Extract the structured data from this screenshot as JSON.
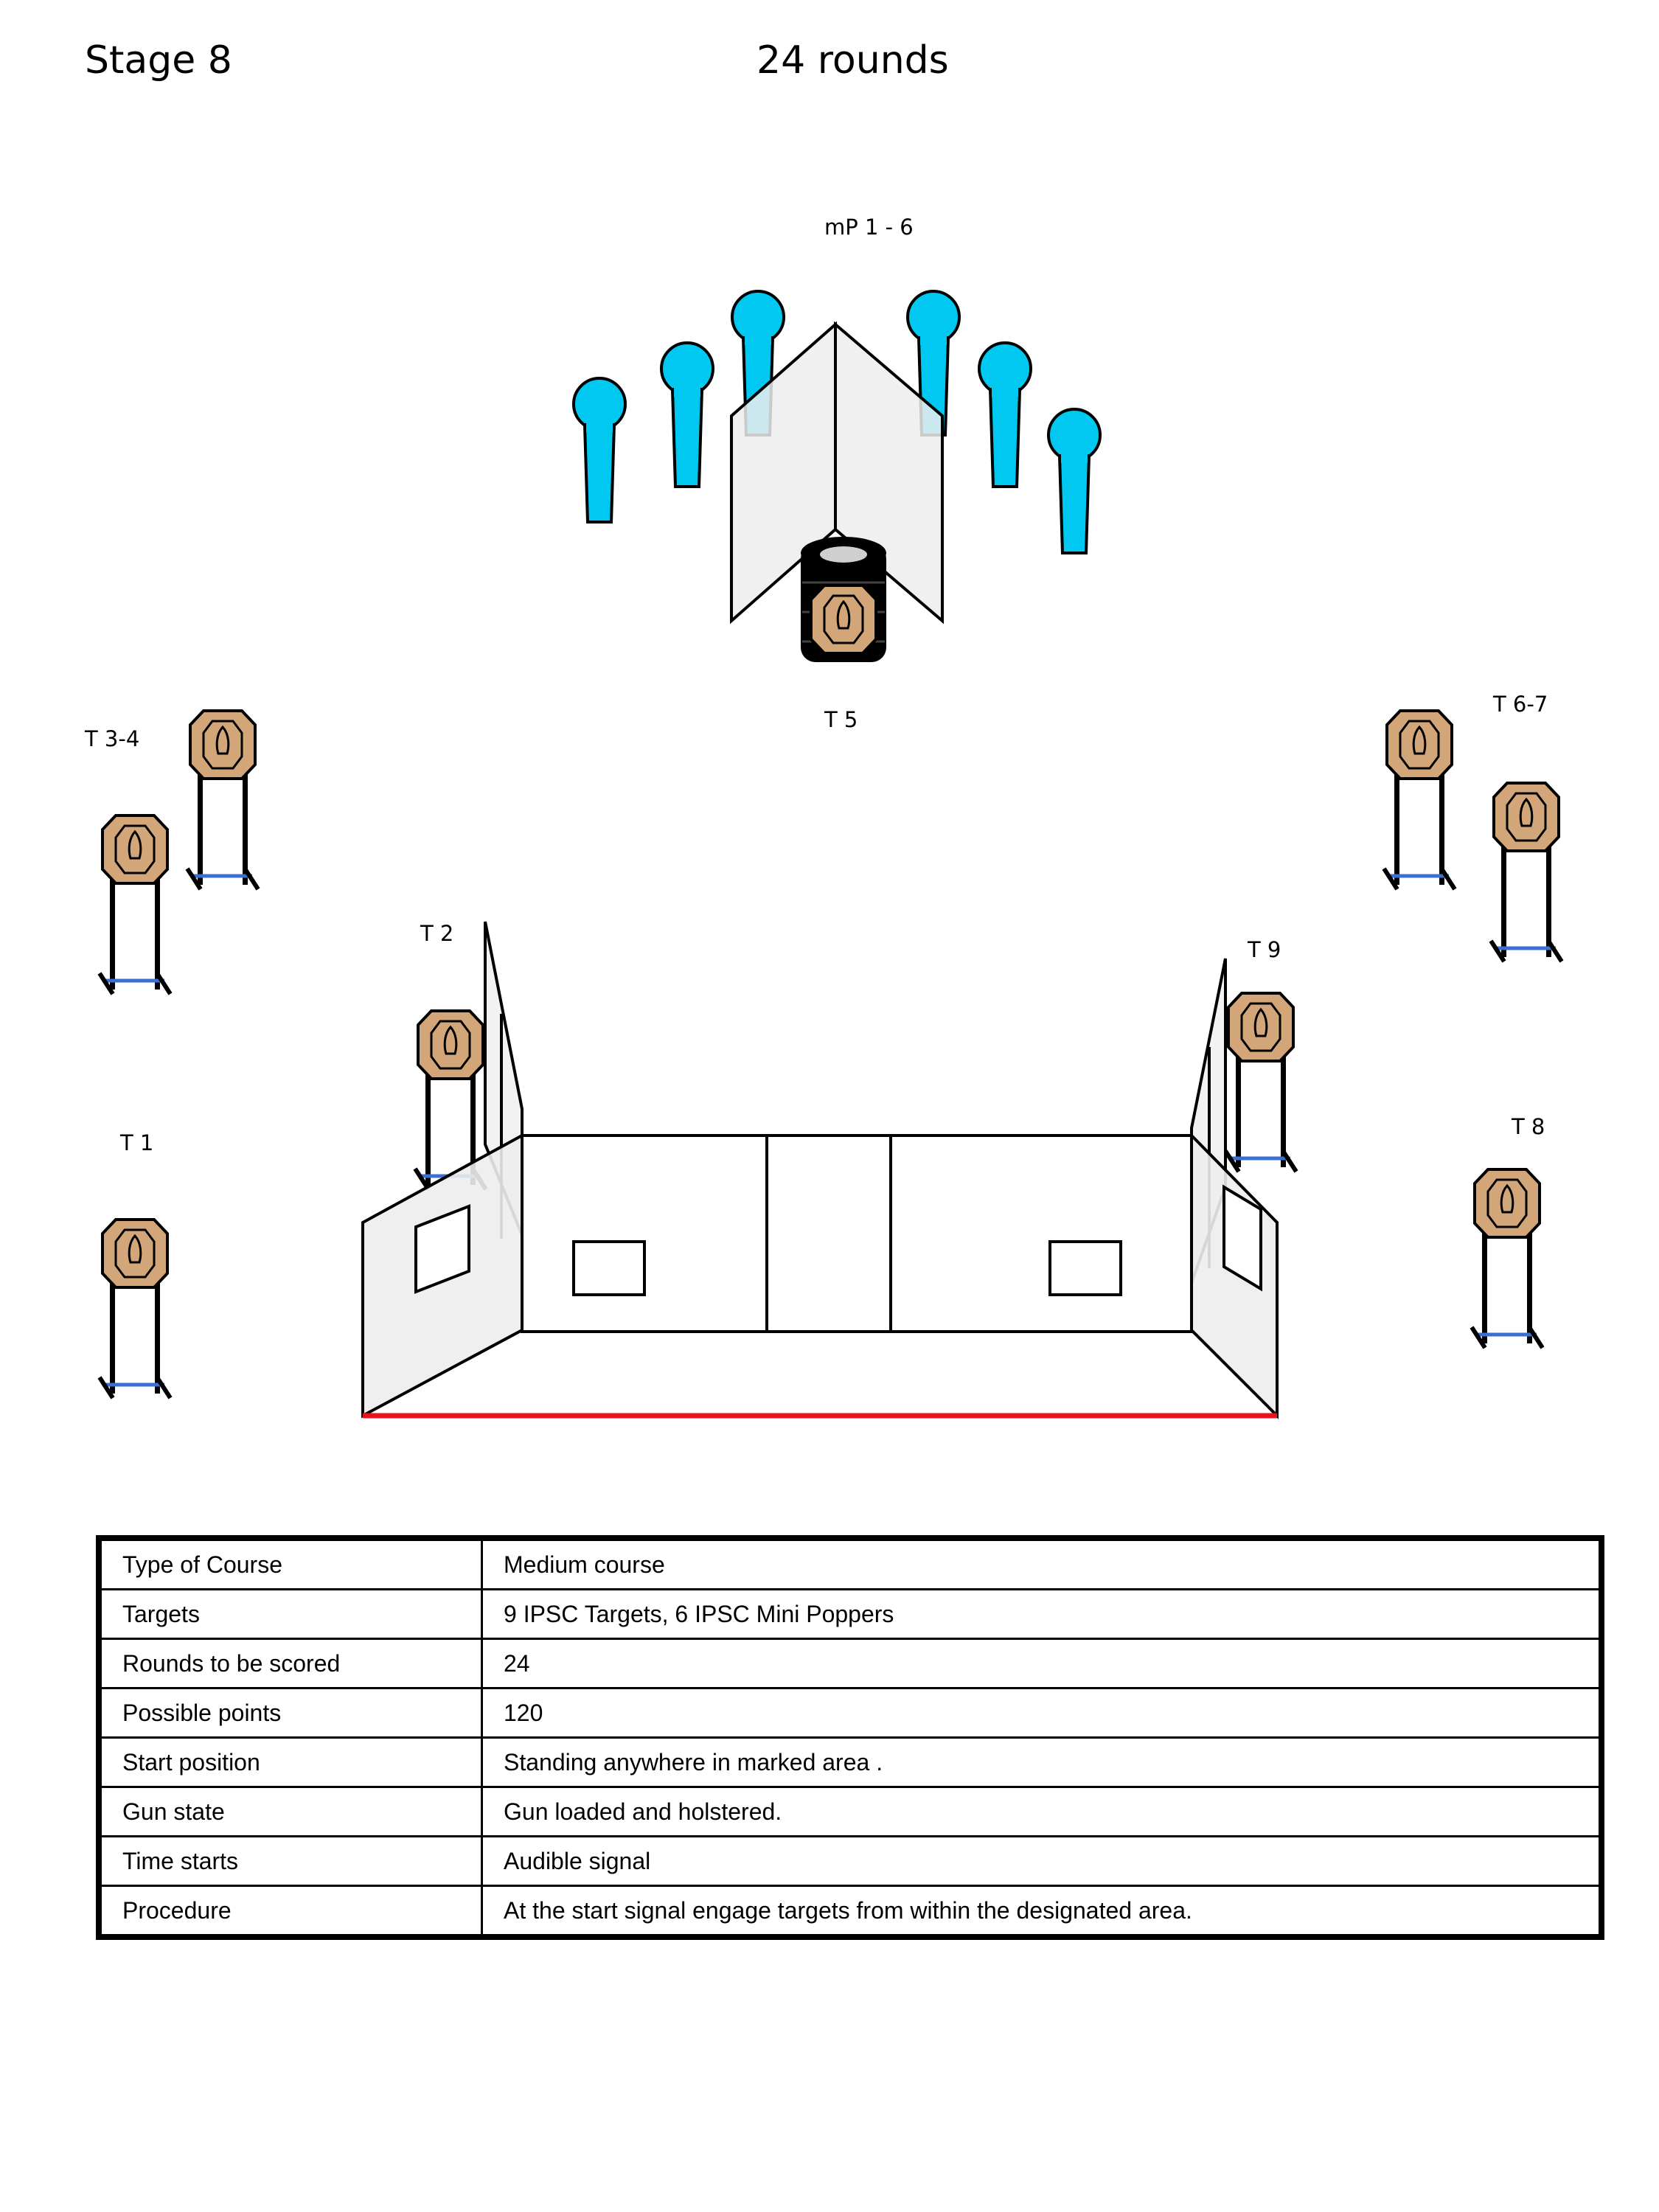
{
  "header": {
    "stage": "Stage  8",
    "rounds": "24 rounds"
  },
  "diagram": {
    "labels": {
      "minipoppers": "mP  1 -  6",
      "t5": "T  5",
      "t34": "T 3-4",
      "t67": "T 6-7",
      "t2": "T  2",
      "t9": "T  9",
      "t1": "T  1",
      "t8": "T  8"
    },
    "colors": {
      "target_fill": "#D2A679",
      "popper_fill": "#00C8F0",
      "wall_fill": "#EDEDED",
      "fault_line": "#E8141B"
    }
  },
  "table": {
    "rows": [
      {
        "label": "Type of Course",
        "value": "Medium course"
      },
      {
        "label": "Targets",
        "value": "9 IPSC Targets, 6 IPSC Mini Poppers"
      },
      {
        "label": "Rounds  to  be  scored",
        "value": "24"
      },
      {
        "label": "Possible points",
        "value": "120"
      },
      {
        "label": "Start position",
        "value": "Standing  anywhere in marked area ."
      },
      {
        "label": "Gun state",
        "value": "Gun loaded and  holstered."
      },
      {
        "label": "Time starts",
        "value": "Audible signal"
      },
      {
        "label": "Procedure",
        "value": "At the start signal engage targets from within the designated area."
      }
    ]
  }
}
